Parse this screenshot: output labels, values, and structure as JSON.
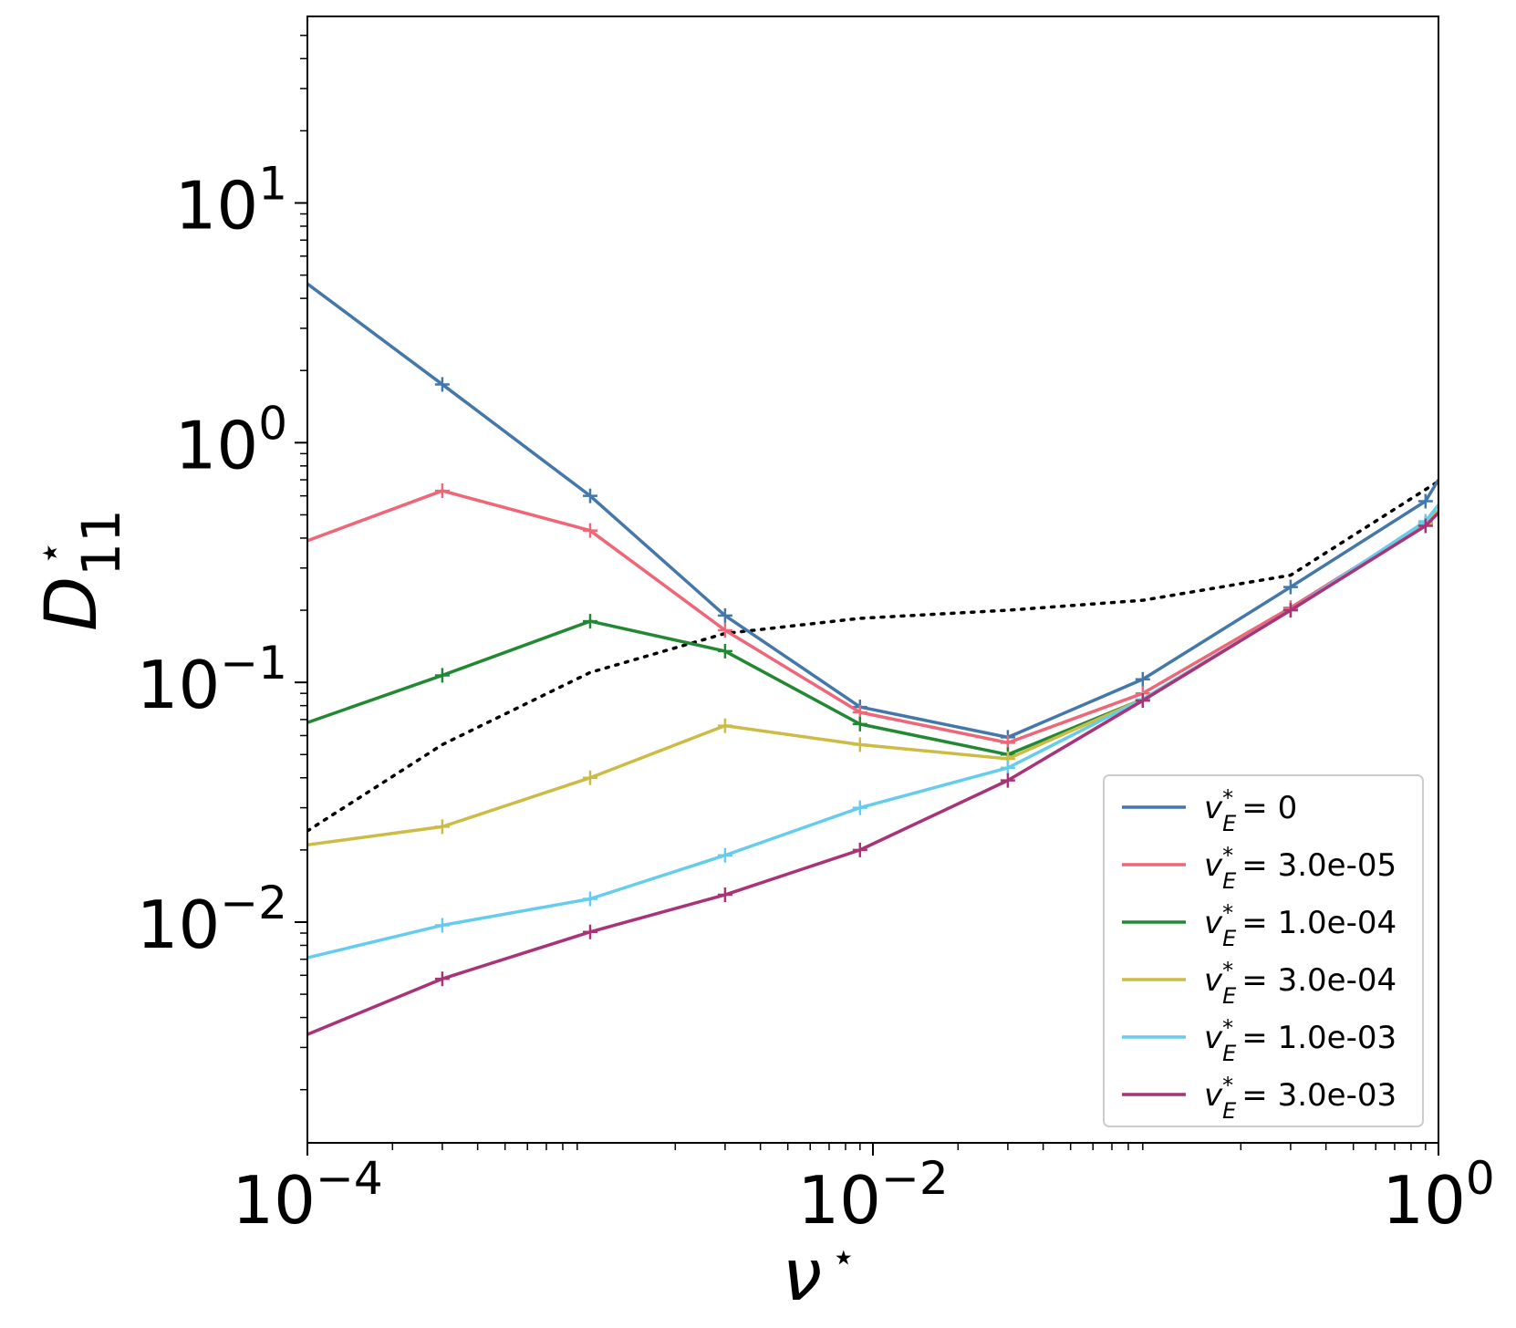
{
  "chart_data": {
    "type": "line",
    "xscale": "log",
    "yscale": "log",
    "xlim": [
      0.0001,
      1
    ],
    "ylim": [
      0.0012,
      60
    ],
    "xlabel": "ν",
    "xlabel_sup": "⋆",
    "ylabel": "D",
    "ylabel_sub": "11",
    "ylabel_sup": "⋆",
    "x_ticks": [
      {
        "value": 0.0001,
        "base": "10",
        "exp": "−4"
      },
      {
        "value": 0.01,
        "base": "10",
        "exp": "−2"
      },
      {
        "value": 1,
        "base": "10",
        "exp": "0"
      }
    ],
    "y_ticks": [
      {
        "value": 0.01,
        "base": "10",
        "exp": "−2"
      },
      {
        "value": 0.1,
        "base": "10",
        "exp": "−1"
      },
      {
        "value": 1,
        "base": "10",
        "exp": "0"
      },
      {
        "value": 10,
        "base": "10",
        "exp": "1"
      }
    ],
    "legend_position": "lower-right",
    "series": [
      {
        "name": "v*_E = 0",
        "legend_label": "= 0",
        "color": "#4477aa",
        "x": [
          0.0001,
          0.0003,
          0.001,
          0.003,
          0.009,
          0.03,
          0.09,
          0.3,
          0.9,
          1.0
        ],
        "y": [
          4.6,
          1.75,
          0.6,
          0.19,
          0.079,
          0.059,
          0.103,
          0.25,
          0.57,
          0.7
        ],
        "marker_x": [
          0.0003,
          0.001,
          0.003,
          0.009,
          0.03,
          0.09,
          0.3,
          0.9
        ]
      },
      {
        "name": "v*_E = 3.0e-05",
        "legend_label": "= 3.0e-05",
        "color": "#ee6677",
        "x": [
          0.0001,
          0.0003,
          0.001,
          0.003,
          0.009,
          0.03,
          0.09,
          0.3,
          0.9,
          1.0
        ],
        "y": [
          0.39,
          0.63,
          0.43,
          0.165,
          0.075,
          0.056,
          0.09,
          0.205,
          0.46,
          0.52
        ],
        "marker_x": [
          0.0003,
          0.001,
          0.003,
          0.009,
          0.03,
          0.09,
          0.3,
          0.9
        ]
      },
      {
        "name": "v*_E = 1.0e-04",
        "legend_label": "= 1.0e-04",
        "color": "#228833",
        "x": [
          0.0001,
          0.0003,
          0.001,
          0.003,
          0.009,
          0.03,
          0.09,
          0.3,
          0.9,
          1.0
        ],
        "y": [
          0.068,
          0.107,
          0.18,
          0.135,
          0.067,
          0.05,
          0.085,
          0.2,
          0.46,
          0.52
        ],
        "marker_x": [
          0.0003,
          0.001,
          0.003,
          0.009,
          0.03,
          0.09,
          0.3,
          0.9
        ]
      },
      {
        "name": "v*_E = 3.0e-04",
        "legend_label": "= 3.0e-04",
        "color": "#ccbb44",
        "x": [
          0.0001,
          0.0003,
          0.001,
          0.003,
          0.009,
          0.03,
          0.09,
          0.3,
          0.9,
          1.0
        ],
        "y": [
          0.021,
          0.025,
          0.04,
          0.066,
          0.055,
          0.048,
          0.085,
          0.2,
          0.46,
          0.52
        ],
        "marker_x": [
          0.0003,
          0.001,
          0.003,
          0.009,
          0.03,
          0.09,
          0.3,
          0.9
        ]
      },
      {
        "name": "v*_E = 1.0e-03",
        "legend_label": "= 1.0e-03",
        "color": "#66ccee",
        "x": [
          0.0001,
          0.0003,
          0.001,
          0.003,
          0.009,
          0.03,
          0.09,
          0.3,
          0.9,
          1.0
        ],
        "y": [
          0.0071,
          0.0097,
          0.0125,
          0.019,
          0.03,
          0.044,
          0.085,
          0.2,
          0.47,
          0.55
        ],
        "marker_x": [
          0.0003,
          0.001,
          0.003,
          0.009,
          0.03,
          0.09,
          0.3,
          0.9
        ]
      },
      {
        "name": "v*_E = 3.0e-03",
        "legend_label": "= 3.0e-03",
        "color": "#aa3377",
        "x": [
          0.0001,
          0.0003,
          0.001,
          0.003,
          0.009,
          0.03,
          0.09,
          0.3,
          0.9,
          1.0
        ],
        "y": [
          0.0034,
          0.0058,
          0.0091,
          0.013,
          0.02,
          0.039,
          0.084,
          0.2,
          0.45,
          0.51
        ],
        "marker_x": [
          0.0003,
          0.001,
          0.003,
          0.009,
          0.03,
          0.09,
          0.3,
          0.9
        ]
      }
    ],
    "reference_line": {
      "name": "dotted reference",
      "color": "#000000",
      "style": "dotted",
      "x": [
        0.0001,
        0.0003,
        0.001,
        0.003,
        0.009,
        0.03,
        0.09,
        0.3,
        1.0
      ],
      "y": [
        0.024,
        0.055,
        0.11,
        0.16,
        0.185,
        0.2,
        0.22,
        0.28,
        0.69
      ]
    },
    "legend_symbol": "v",
    "legend_sub": "E",
    "legend_sup": "*"
  }
}
